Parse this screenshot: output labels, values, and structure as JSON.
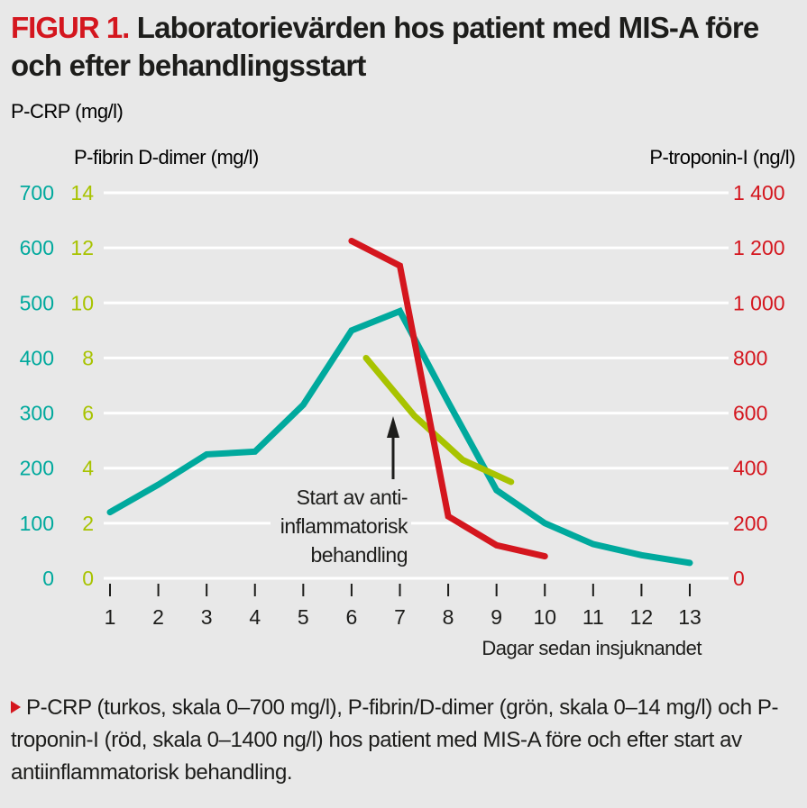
{
  "figure_label": "FIGUR 1.",
  "title": "Laboratorievärden hos patient med MIS-A före och efter behandlingsstart",
  "caption": "P-CRP (turkos, skala 0–700 mg/l), P-fibrin/D-dimer (grön, skala 0–14 mg/l) och P-troponin-I (röd, skala 0–1400 ng/l) hos patient med MIS-A före och efter start av antiinflammatorisk behandling.",
  "colors": {
    "crp": "#00a99d",
    "ddimer": "#a8c300",
    "troponin": "#d4161e",
    "background": "#e8e8e8",
    "grid": "#ffffff",
    "text": "#1d1d1b"
  },
  "chart_data": {
    "type": "line",
    "title": "Laboratorievärden hos patient med MIS-A före och efter behandlingsstart",
    "xlabel": "Dagar sedan insjuknandet",
    "x_ticks": [
      1,
      2,
      3,
      4,
      5,
      6,
      7,
      8,
      9,
      10,
      11,
      12,
      13
    ],
    "xlim": [
      1,
      13
    ],
    "grid": true,
    "axes": {
      "crp": {
        "label": "P-CRP (mg/l)",
        "side": "left-outer",
        "range": [
          0,
          700
        ],
        "ticks": [
          "0",
          "100",
          "200",
          "300",
          "400",
          "500",
          "600",
          "700"
        ]
      },
      "ddimer": {
        "label": "P-fibrin D-dimer (mg/l)",
        "side": "left-inner",
        "range": [
          0,
          14
        ],
        "ticks": [
          "0",
          "2",
          "4",
          "6",
          "8",
          "10",
          "12",
          "14"
        ]
      },
      "troponin": {
        "label": "P-troponin-I (ng/l)",
        "side": "right",
        "range": [
          0,
          1400
        ],
        "ticks": [
          "0",
          "200",
          "400",
          "600",
          "800",
          "1 000",
          "1 200",
          "1 400"
        ]
      }
    },
    "series": [
      {
        "name": "P-CRP",
        "axis": "crp",
        "color": "#00a99d",
        "x": [
          1,
          2,
          3,
          4,
          5,
          6,
          7,
          8,
          9,
          10,
          11,
          12,
          13
        ],
        "y": [
          120,
          170,
          225,
          230,
          315,
          450,
          485,
          320,
          160,
          100,
          62,
          42,
          28
        ]
      },
      {
        "name": "P-fibrin D-dimer",
        "axis": "ddimer",
        "color": "#a8c300",
        "x": [
          6.3,
          7.3,
          8.3,
          9.3
        ],
        "y": [
          8.0,
          5.9,
          4.3,
          3.5
        ]
      },
      {
        "name": "P-troponin-I",
        "axis": "troponin",
        "color": "#d4161e",
        "x": [
          6,
          7,
          8,
          9,
          10
        ],
        "y": [
          1225,
          1135,
          225,
          120,
          80
        ]
      }
    ],
    "annotations": [
      {
        "text": [
          "Start av anti-",
          "inflammatorisk",
          "behandling"
        ],
        "x": 7,
        "arrow": "up"
      }
    ]
  }
}
